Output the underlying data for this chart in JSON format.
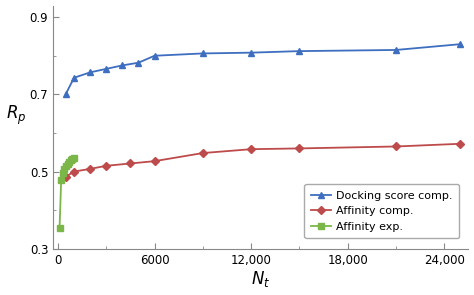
{
  "docking_x": [
    500,
    1000,
    2000,
    3000,
    4000,
    5000,
    6000,
    9000,
    12000,
    15000,
    21000,
    25000
  ],
  "docking_y": [
    0.702,
    0.743,
    0.757,
    0.766,
    0.775,
    0.782,
    0.8,
    0.806,
    0.808,
    0.812,
    0.815,
    0.83
  ],
  "affinity_comp_x": [
    500,
    1000,
    2000,
    3000,
    4500,
    6000,
    9000,
    12000,
    15000,
    21000,
    25000
  ],
  "affinity_comp_y": [
    0.487,
    0.5,
    0.507,
    0.515,
    0.521,
    0.527,
    0.548,
    0.558,
    0.56,
    0.565,
    0.572
  ],
  "affinity_exp_x": [
    100,
    200,
    300,
    400,
    500,
    600,
    700,
    800,
    900,
    1000
  ],
  "affinity_exp_y": [
    0.355,
    0.478,
    0.497,
    0.507,
    0.515,
    0.52,
    0.525,
    0.53,
    0.533,
    0.535
  ],
  "docking_color": "#3E6EBF",
  "affinity_comp_color": "#BE4B4B",
  "affinity_exp_color": "#7AB648",
  "xlabel": "$N_t$",
  "ylabel": "$R_p$",
  "xlim": [
    -300,
    25500
  ],
  "ylim": [
    0.3,
    0.93
  ],
  "xticks": [
    0,
    6000,
    12000,
    18000,
    24000
  ],
  "xtick_labels": [
    "0",
    "6000",
    "12,000",
    "18,000",
    "24,000"
  ],
  "yticks": [
    0.3,
    0.5,
    0.7,
    0.9
  ],
  "ytick_labels": [
    "0.3",
    "0.5",
    "0.7",
    "0.9"
  ],
  "legend_labels": [
    "Docking score comp.",
    "Affinity comp.",
    "Affinity exp."
  ],
  "background_color": "#ffffff"
}
